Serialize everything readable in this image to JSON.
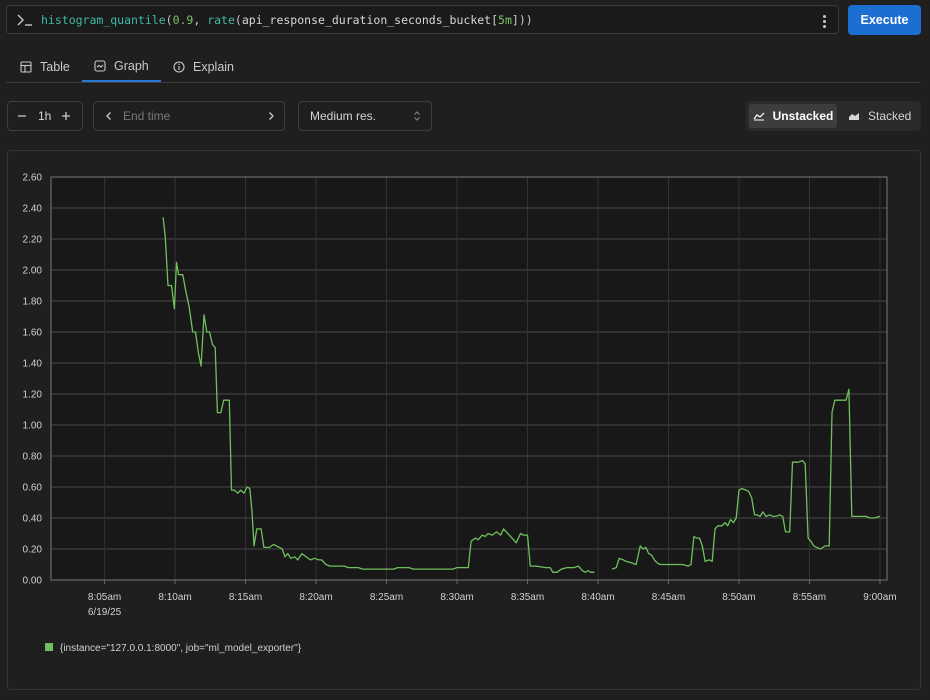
{
  "query": {
    "function": "histogram_quantile",
    "quantile": "0.9",
    "inner_function": "rate",
    "metric": "api_response_duration_seconds_bucket",
    "range": "5m"
  },
  "execute_label": "Execute",
  "tabs": [
    {
      "label": "Table",
      "icon": "table-icon"
    },
    {
      "label": "Graph",
      "icon": "graph-icon"
    },
    {
      "label": "Explain",
      "icon": "info-icon"
    }
  ],
  "controls": {
    "range_value": "1h",
    "end_time_placeholder": "End time",
    "resolution": "Medium res.",
    "unstacked_label": "Unstacked",
    "stacked_label": "Stacked"
  },
  "colors": {
    "accent": "#1c6fd0",
    "series": "#6fbf5f"
  },
  "chart_data": {
    "type": "line",
    "yticks": [
      "0.00",
      "0.20",
      "0.40",
      "0.60",
      "0.80",
      "1.00",
      "1.20",
      "1.40",
      "1.60",
      "1.80",
      "2.00",
      "2.20",
      "2.40",
      "2.60"
    ],
    "ylim": [
      0,
      2.6
    ],
    "xticks": [
      "8:05am",
      "8:10am",
      "8:15am",
      "8:20am",
      "8:25am",
      "8:30am",
      "8:35am",
      "8:40am",
      "8:45am",
      "8:50am",
      "8:55am",
      "9:00am"
    ],
    "xtick_minutes": [
      65,
      70,
      75,
      80,
      85,
      90,
      95,
      100,
      105,
      110,
      115,
      120
    ],
    "date_label": "6/19/25",
    "xlim_minutes": [
      61.2,
      120.5
    ],
    "grid": true,
    "series": [
      {
        "name": "{instance=\"127.0.0.1:8000\", job=\"ml_model_exporter\"}",
        "segments": [
          [
            [
              69.15,
              2.34
            ],
            [
              69.3,
              2.22
            ],
            [
              69.5,
              1.9
            ],
            [
              69.75,
              1.9
            ],
            [
              69.95,
              1.75
            ],
            [
              70.1,
              2.05
            ],
            [
              70.25,
              1.97
            ],
            [
              70.55,
              1.97
            ],
            [
              70.75,
              1.87
            ],
            [
              71.0,
              1.76
            ],
            [
              71.25,
              1.6
            ],
            [
              71.45,
              1.6
            ],
            [
              71.65,
              1.47
            ],
            [
              71.85,
              1.38
            ],
            [
              72.05,
              1.71
            ],
            [
              72.25,
              1.6
            ],
            [
              72.45,
              1.6
            ],
            [
              72.65,
              1.52
            ],
            [
              72.85,
              1.5
            ],
            [
              73.0,
              1.08
            ],
            [
              73.25,
              1.08
            ],
            [
              73.45,
              1.16
            ],
            [
              73.85,
              1.16
            ],
            [
              74.0,
              0.58
            ],
            [
              74.2,
              0.58
            ],
            [
              74.45,
              0.56
            ],
            [
              74.65,
              0.58
            ],
            [
              74.9,
              0.56
            ],
            [
              75.1,
              0.6
            ],
            [
              75.3,
              0.59
            ],
            [
              75.45,
              0.45
            ],
            [
              75.6,
              0.22
            ],
            [
              75.8,
              0.33
            ],
            [
              76.1,
              0.33
            ],
            [
              76.3,
              0.21
            ],
            [
              76.7,
              0.21
            ],
            [
              77.0,
              0.23
            ],
            [
              77.4,
              0.21
            ],
            [
              77.6,
              0.2
            ],
            [
              77.8,
              0.15
            ],
            [
              78.0,
              0.17
            ],
            [
              78.2,
              0.14
            ],
            [
              78.5,
              0.15
            ],
            [
              78.7,
              0.13
            ],
            [
              79.0,
              0.17
            ],
            [
              79.3,
              0.15
            ],
            [
              79.6,
              0.13
            ],
            [
              79.9,
              0.14
            ],
            [
              80.2,
              0.13
            ],
            [
              80.4,
              0.13
            ],
            [
              80.7,
              0.1
            ],
            [
              81.0,
              0.09
            ],
            [
              82.0,
              0.09
            ],
            [
              82.3,
              0.08
            ],
            [
              83.0,
              0.08
            ],
            [
              83.3,
              0.07
            ],
            [
              84.5,
              0.07
            ],
            [
              84.8,
              0.07
            ],
            [
              85.5,
              0.07
            ],
            [
              85.8,
              0.08
            ],
            [
              86.6,
              0.08
            ],
            [
              86.9,
              0.07
            ],
            [
              89.7,
              0.07
            ],
            [
              90.0,
              0.08
            ],
            [
              90.8,
              0.08
            ],
            [
              91.0,
              0.25
            ],
            [
              91.3,
              0.27
            ],
            [
              91.5,
              0.26
            ],
            [
              91.8,
              0.29
            ],
            [
              92.0,
              0.28
            ],
            [
              92.2,
              0.3
            ],
            [
              92.5,
              0.29
            ],
            [
              92.8,
              0.31
            ],
            [
              93.1,
              0.29
            ],
            [
              93.3,
              0.33
            ],
            [
              93.6,
              0.3
            ],
            [
              93.9,
              0.27
            ],
            [
              94.2,
              0.24
            ],
            [
              94.5,
              0.3
            ],
            [
              94.7,
              0.29
            ],
            [
              95.0,
              0.29
            ],
            [
              95.2,
              0.09
            ],
            [
              95.6,
              0.09
            ],
            [
              96.3,
              0.08
            ],
            [
              96.6,
              0.08
            ],
            [
              96.8,
              0.05
            ],
            [
              97.1,
              0.05
            ],
            [
              97.4,
              0.07
            ],
            [
              97.8,
              0.08
            ],
            [
              98.3,
              0.08
            ],
            [
              98.6,
              0.09
            ],
            [
              98.9,
              0.06
            ],
            [
              99.1,
              0.05
            ],
            [
              99.3,
              0.06
            ],
            [
              99.5,
              0.05
            ],
            [
              99.75,
              0.05
            ]
          ],
          [
            [
              101.0,
              0.07
            ],
            [
              101.3,
              0.08
            ],
            [
              101.5,
              0.14
            ],
            [
              101.8,
              0.13
            ],
            [
              102.0,
              0.12
            ],
            [
              102.4,
              0.11
            ],
            [
              102.7,
              0.1
            ],
            [
              103.0,
              0.22
            ],
            [
              103.2,
              0.2
            ],
            [
              103.4,
              0.21
            ],
            [
              103.6,
              0.17
            ],
            [
              103.8,
              0.16
            ],
            [
              104.0,
              0.13
            ],
            [
              104.2,
              0.11
            ],
            [
              104.4,
              0.1
            ],
            [
              105.0,
              0.1
            ],
            [
              106.0,
              0.1
            ],
            [
              106.4,
              0.09
            ],
            [
              106.6,
              0.1
            ],
            [
              106.8,
              0.28
            ],
            [
              107.0,
              0.27
            ],
            [
              107.2,
              0.27
            ],
            [
              107.4,
              0.22
            ],
            [
              107.6,
              0.12
            ],
            [
              107.9,
              0.13
            ],
            [
              108.1,
              0.12
            ],
            [
              108.3,
              0.33
            ],
            [
              108.5,
              0.35
            ],
            [
              108.8,
              0.35
            ],
            [
              109.0,
              0.37
            ],
            [
              109.2,
              0.35
            ],
            [
              109.4,
              0.39
            ],
            [
              109.6,
              0.37
            ],
            [
              109.8,
              0.4
            ],
            [
              110.0,
              0.58
            ],
            [
              110.2,
              0.59
            ],
            [
              110.5,
              0.58
            ],
            [
              110.7,
              0.57
            ],
            [
              110.9,
              0.53
            ],
            [
              111.1,
              0.42
            ],
            [
              111.3,
              0.42
            ],
            [
              111.5,
              0.41
            ],
            [
              111.7,
              0.44
            ],
            [
              111.9,
              0.41
            ],
            [
              112.2,
              0.42
            ],
            [
              112.4,
              0.41
            ],
            [
              112.6,
              0.41
            ],
            [
              112.9,
              0.42
            ],
            [
              113.1,
              0.41
            ],
            [
              113.3,
              0.31
            ],
            [
              113.6,
              0.31
            ],
            [
              113.8,
              0.76
            ],
            [
              114.2,
              0.76
            ],
            [
              114.5,
              0.77
            ],
            [
              114.7,
              0.75
            ],
            [
              114.9,
              0.27
            ],
            [
              115.1,
              0.25
            ],
            [
              115.3,
              0.22
            ],
            [
              115.5,
              0.21
            ],
            [
              115.8,
              0.2
            ],
            [
              116.1,
              0.22
            ],
            [
              116.4,
              0.22
            ],
            [
              116.6,
              1.08
            ],
            [
              116.8,
              1.16
            ],
            [
              117.2,
              1.16
            ],
            [
              117.6,
              1.16
            ],
            [
              117.8,
              1.23
            ],
            [
              118.0,
              0.41
            ],
            [
              118.4,
              0.41
            ],
            [
              118.7,
              0.41
            ],
            [
              119.0,
              0.41
            ],
            [
              119.3,
              0.4
            ],
            [
              119.6,
              0.4
            ],
            [
              120.0,
              0.41
            ]
          ]
        ]
      }
    ]
  }
}
